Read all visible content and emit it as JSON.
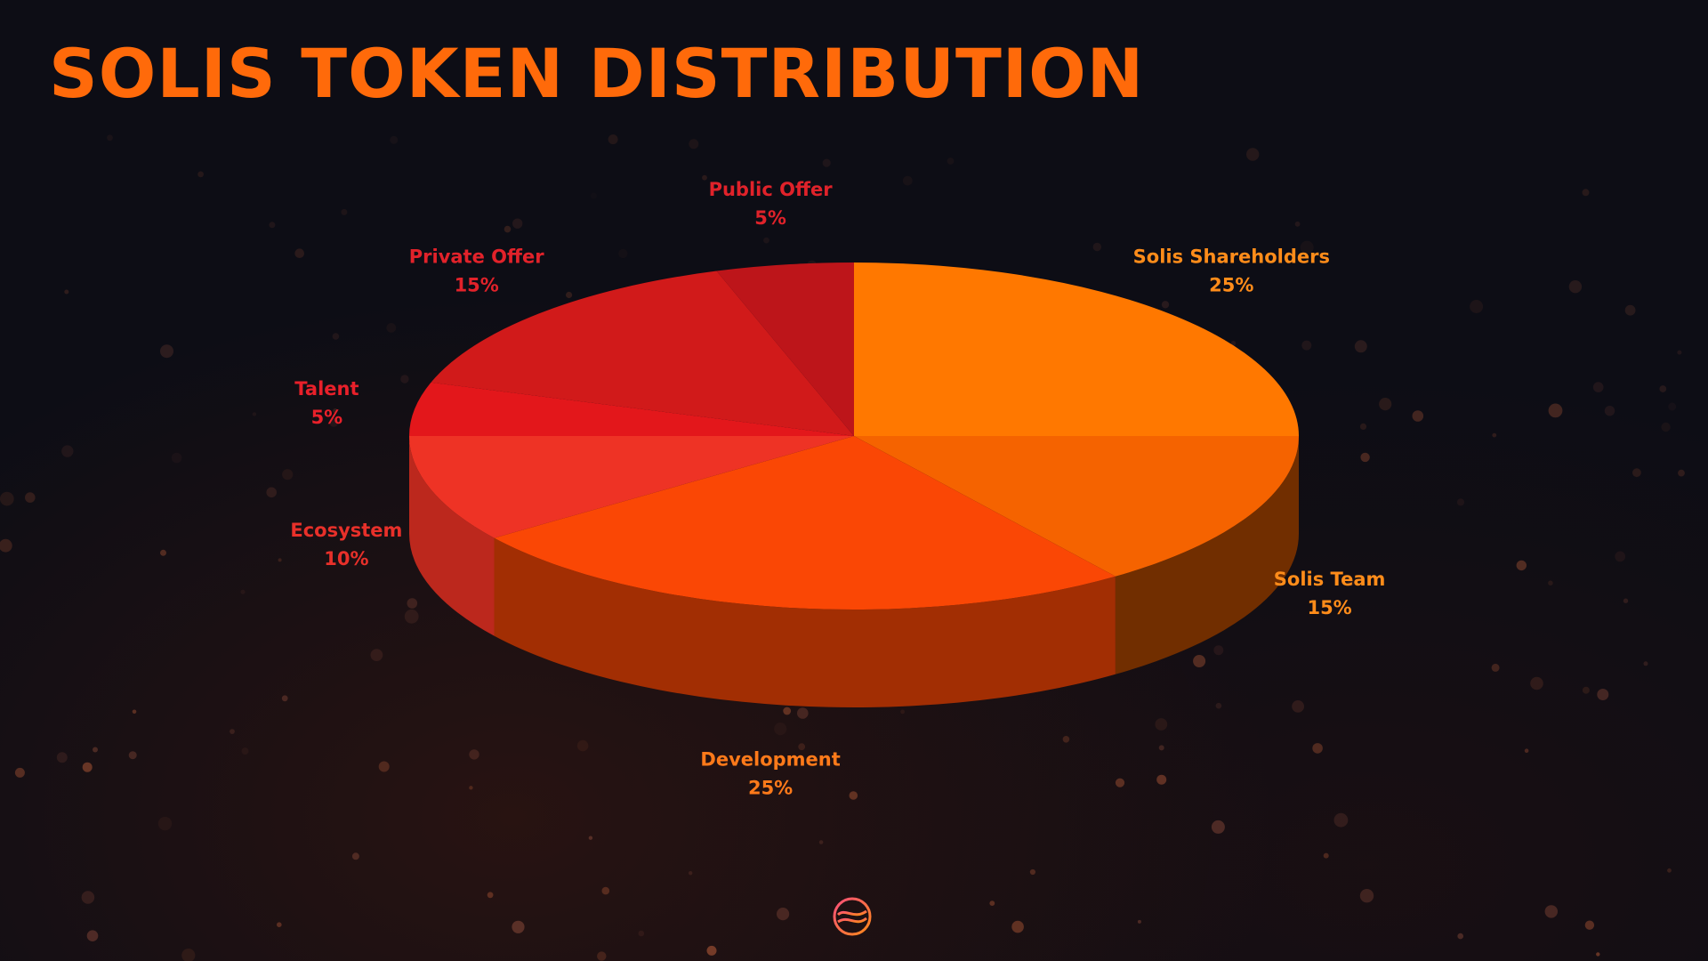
{
  "title": "SOLIS TOKEN DISTRIBUTION",
  "colors": {
    "title": "#ff6a0a",
    "background": "#0d0d15"
  },
  "logo": {
    "icon": "solis-logo-icon"
  },
  "chart_data": {
    "type": "pie",
    "title": "SOLIS TOKEN DISTRIBUTION",
    "legend": "labels beside slices",
    "slices": [
      {
        "label": "Solis Shareholders",
        "value": 25,
        "value_label": "25%",
        "color": "#ff7800",
        "label_color": "#ff8c1a"
      },
      {
        "label": "Solis Team",
        "value": 15,
        "value_label": "15%",
        "color": "#f56300",
        "label_color": "#ff8c1a"
      },
      {
        "label": "Development",
        "value": 25,
        "value_label": "25%",
        "color": "#fa4705",
        "label_color": "#ff7a1a"
      },
      {
        "label": "Ecosystem",
        "value": 10,
        "value_label": "10%",
        "color": "#ee3325",
        "label_color": "#e8302a"
      },
      {
        "label": "Talent",
        "value": 5,
        "value_label": "5%",
        "color": "#e3171b",
        "label_color": "#e8202a"
      },
      {
        "label": "Private Offer",
        "value": 15,
        "value_label": "15%",
        "color": "#d11a1a",
        "label_color": "#e2222a"
      },
      {
        "label": "Public Offer",
        "value": 5,
        "value_label": "5%",
        "color": "#bd151a",
        "label_color": "#e0222a"
      }
    ]
  }
}
